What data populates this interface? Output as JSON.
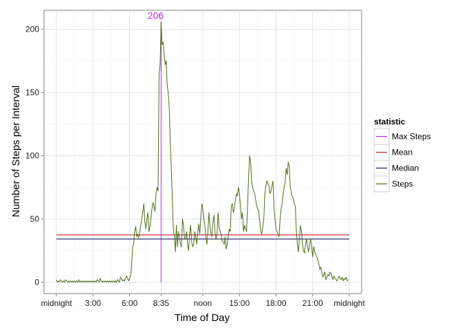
{
  "chart_data": {
    "type": "line",
    "xlabel": "Time of Day",
    "ylabel": "Number of Steps per Interval",
    "xlim": [
      0,
      1440
    ],
    "ylim": [
      -9,
      215
    ],
    "x_ticks": [
      {
        "value": 0,
        "label": "midnight"
      },
      {
        "value": 180,
        "label": "3:00"
      },
      {
        "value": 360,
        "label": "6:00"
      },
      {
        "value": 515,
        "label": "8:35"
      },
      {
        "value": 720,
        "label": "noon"
      },
      {
        "value": 900,
        "label": "15:00"
      },
      {
        "value": 1080,
        "label": "18:00"
      },
      {
        "value": 1260,
        "label": "21:00"
      },
      {
        "value": 1440,
        "label": "midnight"
      }
    ],
    "y_ticks": [
      {
        "value": 0,
        "label": "0"
      },
      {
        "value": 50,
        "label": "50"
      },
      {
        "value": 100,
        "label": "100"
      },
      {
        "value": 150,
        "label": "150"
      },
      {
        "value": 200,
        "label": "200"
      }
    ],
    "grid": true,
    "legend": {
      "title": "statistic",
      "position": "right",
      "items": [
        {
          "name": "Max Steps",
          "color": "#b22ee6"
        },
        {
          "name": "Mean",
          "color": "#cc2222"
        },
        {
          "name": "Median",
          "color": "#1a1a66"
        },
        {
          "name": "Steps",
          "color": "#4d6b1a"
        }
      ]
    },
    "annotation": {
      "label": "206",
      "x": 515,
      "y": 206,
      "color": "#b22ee6"
    },
    "hlines": [
      {
        "name": "Mean",
        "value": 37.4,
        "color": "#cc2222"
      },
      {
        "name": "Median",
        "value": 34.1,
        "color": "#1a1a66"
      }
    ],
    "vline": {
      "name": "Max Steps",
      "x": 515,
      "y": 206,
      "color": "#b22ee6"
    },
    "series": [
      {
        "name": "Steps",
        "color": "#4d6b1a",
        "points": [
          [
            0,
            2
          ],
          [
            5,
            0
          ],
          [
            10,
            1
          ],
          [
            15,
            0
          ],
          [
            20,
            2
          ],
          [
            25,
            1
          ],
          [
            30,
            0
          ],
          [
            35,
            1
          ],
          [
            40,
            0
          ],
          [
            45,
            2
          ],
          [
            50,
            1
          ],
          [
            55,
            0
          ],
          [
            60,
            1
          ],
          [
            65,
            0
          ],
          [
            70,
            1
          ],
          [
            75,
            0
          ],
          [
            80,
            1
          ],
          [
            85,
            0
          ],
          [
            90,
            1
          ],
          [
            95,
            0
          ],
          [
            100,
            1
          ],
          [
            105,
            0
          ],
          [
            110,
            2
          ],
          [
            115,
            0
          ],
          [
            120,
            1
          ],
          [
            125,
            0
          ],
          [
            130,
            1
          ],
          [
            135,
            0
          ],
          [
            140,
            1
          ],
          [
            145,
            0
          ],
          [
            150,
            1
          ],
          [
            155,
            0
          ],
          [
            160,
            1
          ],
          [
            165,
            0
          ],
          [
            170,
            1
          ],
          [
            175,
            0
          ],
          [
            180,
            1
          ],
          [
            185,
            0
          ],
          [
            190,
            1
          ],
          [
            195,
            0
          ],
          [
            200,
            2
          ],
          [
            205,
            1
          ],
          [
            210,
            0
          ],
          [
            215,
            3
          ],
          [
            220,
            1
          ],
          [
            225,
            0
          ],
          [
            230,
            1
          ],
          [
            235,
            0
          ],
          [
            240,
            1
          ],
          [
            245,
            0
          ],
          [
            250,
            1
          ],
          [
            255,
            0
          ],
          [
            260,
            1
          ],
          [
            265,
            0
          ],
          [
            270,
            1
          ],
          [
            275,
            0
          ],
          [
            280,
            1
          ],
          [
            285,
            0
          ],
          [
            290,
            1
          ],
          [
            295,
            0
          ],
          [
            300,
            2
          ],
          [
            305,
            1
          ],
          [
            310,
            0
          ],
          [
            315,
            4
          ],
          [
            320,
            3
          ],
          [
            325,
            1
          ],
          [
            330,
            2
          ],
          [
            335,
            1
          ],
          [
            340,
            3
          ],
          [
            345,
            5
          ],
          [
            350,
            3
          ],
          [
            355,
            1
          ],
          [
            360,
            3
          ],
          [
            365,
            5
          ],
          [
            370,
            12
          ],
          [
            375,
            28
          ],
          [
            380,
            30
          ],
          [
            385,
            40
          ],
          [
            390,
            44
          ],
          [
            395,
            36
          ],
          [
            400,
            38
          ],
          [
            405,
            35
          ],
          [
            410,
            40
          ],
          [
            415,
            45
          ],
          [
            420,
            50
          ],
          [
            425,
            56
          ],
          [
            430,
            62
          ],
          [
            435,
            48
          ],
          [
            440,
            42
          ],
          [
            445,
            50
          ],
          [
            450,
            55
          ],
          [
            455,
            40
          ],
          [
            460,
            44
          ],
          [
            465,
            50
          ],
          [
            470,
            58
          ],
          [
            475,
            63
          ],
          [
            480,
            60
          ],
          [
            485,
            56
          ],
          [
            490,
            70
          ],
          [
            495,
            75
          ],
          [
            500,
            72
          ],
          [
            505,
            165
          ],
          [
            510,
            172
          ],
          [
            515,
            206
          ],
          [
            520,
            188
          ],
          [
            525,
            190
          ],
          [
            530,
            180
          ],
          [
            535,
            172
          ],
          [
            540,
            175
          ],
          [
            545,
            155
          ],
          [
            550,
            150
          ],
          [
            555,
            138
          ],
          [
            560,
            110
          ],
          [
            565,
            90
          ],
          [
            570,
            66
          ],
          [
            575,
            42
          ],
          [
            580,
            36
          ],
          [
            585,
            24
          ],
          [
            590,
            45
          ],
          [
            595,
            28
          ],
          [
            600,
            40
          ],
          [
            605,
            35
          ],
          [
            610,
            30
          ],
          [
            615,
            28
          ],
          [
            620,
            50
          ],
          [
            625,
            45
          ],
          [
            630,
            35
          ],
          [
            635,
            34
          ],
          [
            640,
            40
          ],
          [
            645,
            30
          ],
          [
            650,
            25
          ],
          [
            655,
            38
          ],
          [
            660,
            45
          ],
          [
            665,
            32
          ],
          [
            670,
            28
          ],
          [
            675,
            30
          ],
          [
            680,
            40
          ],
          [
            685,
            36
          ],
          [
            690,
            30
          ],
          [
            695,
            40
          ],
          [
            700,
            46
          ],
          [
            705,
            38
          ],
          [
            710,
            50
          ],
          [
            715,
            62
          ],
          [
            720,
            58
          ],
          [
            725,
            50
          ],
          [
            730,
            45
          ],
          [
            735,
            35
          ],
          [
            740,
            30
          ],
          [
            745,
            40
          ],
          [
            750,
            55
          ],
          [
            755,
            45
          ],
          [
            760,
            38
          ],
          [
            765,
            36
          ],
          [
            770,
            48
          ],
          [
            775,
            53
          ],
          [
            780,
            40
          ],
          [
            785,
            34
          ],
          [
            790,
            38
          ],
          [
            795,
            55
          ],
          [
            800,
            44
          ],
          [
            805,
            40
          ],
          [
            810,
            38
          ],
          [
            815,
            33
          ],
          [
            820,
            32
          ],
          [
            825,
            30
          ],
          [
            830,
            36
          ],
          [
            835,
            26
          ],
          [
            840,
            30
          ],
          [
            845,
            36
          ],
          [
            850,
            42
          ],
          [
            855,
            40
          ],
          [
            860,
            60
          ],
          [
            865,
            62
          ],
          [
            870,
            55
          ],
          [
            875,
            58
          ],
          [
            880,
            65
          ],
          [
            885,
            70
          ],
          [
            890,
            68
          ],
          [
            895,
            75
          ],
          [
            900,
            70
          ],
          [
            905,
            60
          ],
          [
            910,
            50
          ],
          [
            915,
            55
          ],
          [
            920,
            40
          ],
          [
            925,
            45
          ],
          [
            930,
            42
          ],
          [
            935,
            40
          ],
          [
            940,
            60
          ],
          [
            945,
            82
          ],
          [
            950,
            100
          ],
          [
            955,
            95
          ],
          [
            960,
            80
          ],
          [
            965,
            75
          ],
          [
            970,
            72
          ],
          [
            975,
            70
          ],
          [
            980,
            65
          ],
          [
            985,
            60
          ],
          [
            990,
            58
          ],
          [
            995,
            56
          ],
          [
            1000,
            48
          ],
          [
            1005,
            40
          ],
          [
            1010,
            38
          ],
          [
            1015,
            44
          ],
          [
            1020,
            50
          ],
          [
            1025,
            70
          ],
          [
            1030,
            76
          ],
          [
            1035,
            80
          ],
          [
            1040,
            78
          ],
          [
            1045,
            76
          ],
          [
            1050,
            70
          ],
          [
            1055,
            72
          ],
          [
            1060,
            76
          ],
          [
            1065,
            80
          ],
          [
            1070,
            60
          ],
          [
            1075,
            50
          ],
          [
            1080,
            42
          ],
          [
            1085,
            40
          ],
          [
            1090,
            38
          ],
          [
            1095,
            36
          ],
          [
            1100,
            50
          ],
          [
            1105,
            58
          ],
          [
            1110,
            62
          ],
          [
            1115,
            70
          ],
          [
            1120,
            75
          ],
          [
            1125,
            80
          ],
          [
            1130,
            90
          ],
          [
            1135,
            85
          ],
          [
            1140,
            95
          ],
          [
            1145,
            92
          ],
          [
            1150,
            76
          ],
          [
            1155,
            70
          ],
          [
            1160,
            68
          ],
          [
            1165,
            66
          ],
          [
            1170,
            62
          ],
          [
            1175,
            60
          ],
          [
            1180,
            40
          ],
          [
            1185,
            30
          ],
          [
            1190,
            24
          ],
          [
            1195,
            35
          ],
          [
            1200,
            45
          ],
          [
            1205,
            40
          ],
          [
            1210,
            30
          ],
          [
            1215,
            25
          ],
          [
            1220,
            23
          ],
          [
            1225,
            30
          ],
          [
            1230,
            34
          ],
          [
            1235,
            28
          ],
          [
            1240,
            24
          ],
          [
            1245,
            30
          ],
          [
            1250,
            34
          ],
          [
            1255,
            28
          ],
          [
            1260,
            20
          ],
          [
            1265,
            28
          ],
          [
            1270,
            24
          ],
          [
            1275,
            22
          ],
          [
            1280,
            20
          ],
          [
            1285,
            18
          ],
          [
            1290,
            15
          ],
          [
            1295,
            10
          ],
          [
            1300,
            12
          ],
          [
            1305,
            8
          ],
          [
            1310,
            4
          ],
          [
            1315,
            6
          ],
          [
            1320,
            8
          ],
          [
            1325,
            2
          ],
          [
            1330,
            4
          ],
          [
            1335,
            6
          ],
          [
            1340,
            5
          ],
          [
            1345,
            8
          ],
          [
            1350,
            7
          ],
          [
            1355,
            4
          ],
          [
            1360,
            2
          ],
          [
            1365,
            5
          ],
          [
            1370,
            3
          ],
          [
            1375,
            2
          ],
          [
            1380,
            1
          ],
          [
            1385,
            3
          ],
          [
            1390,
            5
          ],
          [
            1395,
            3
          ],
          [
            1400,
            2
          ],
          [
            1405,
            4
          ],
          [
            1410,
            1
          ],
          [
            1415,
            3
          ],
          [
            1420,
            2
          ],
          [
            1425,
            4
          ],
          [
            1430,
            1
          ],
          [
            1435,
            2
          ]
        ]
      }
    ]
  }
}
